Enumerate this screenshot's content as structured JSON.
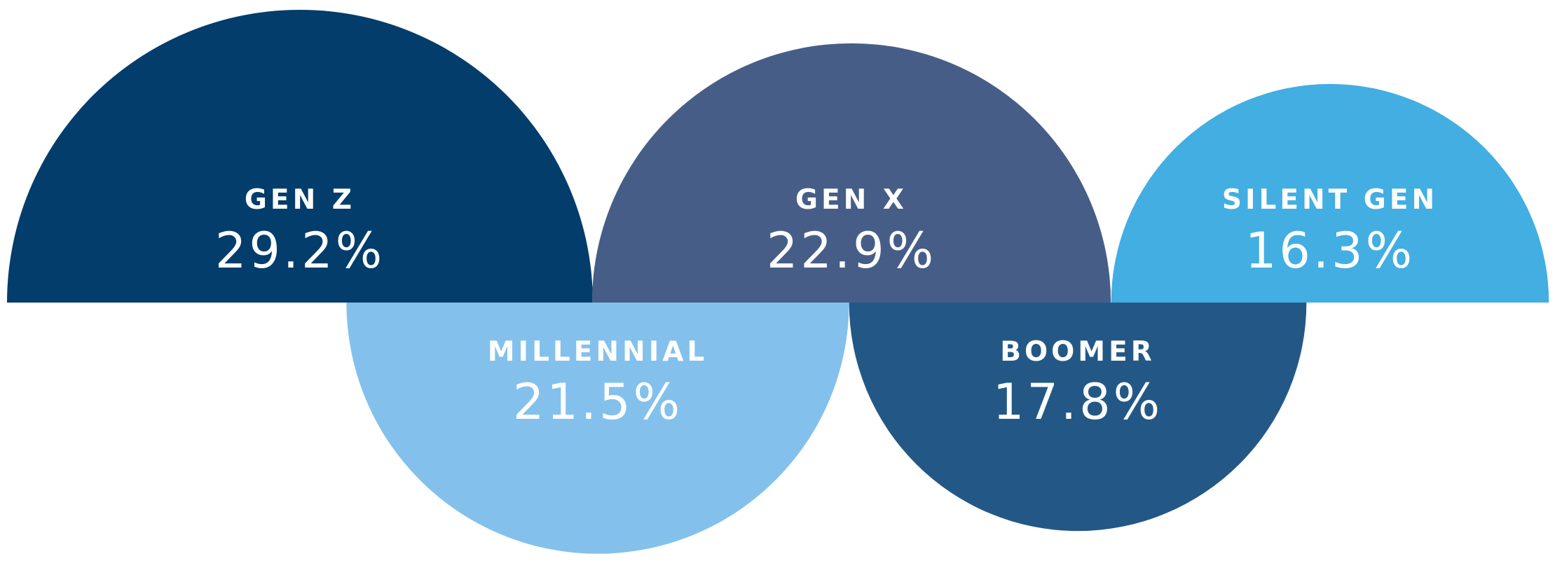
{
  "chart_data": {
    "type": "pie",
    "categories": [
      "GEN Z",
      "MILLENNIAL",
      "GEN X",
      "BOOMER",
      "SILENT GEN"
    ],
    "values": [
      29.2,
      21.5,
      22.9,
      17.8,
      16.3
    ],
    "labels": [
      "29.2%",
      "21.5%",
      "22.9%",
      "17.8%",
      "16.3%"
    ],
    "colors": [
      "#033D6B",
      "#83C1EC",
      "#465E87",
      "#235886",
      "#42AEE2"
    ],
    "orientation": [
      "up",
      "down",
      "up",
      "down",
      "up"
    ],
    "title": "",
    "legend": "none"
  }
}
